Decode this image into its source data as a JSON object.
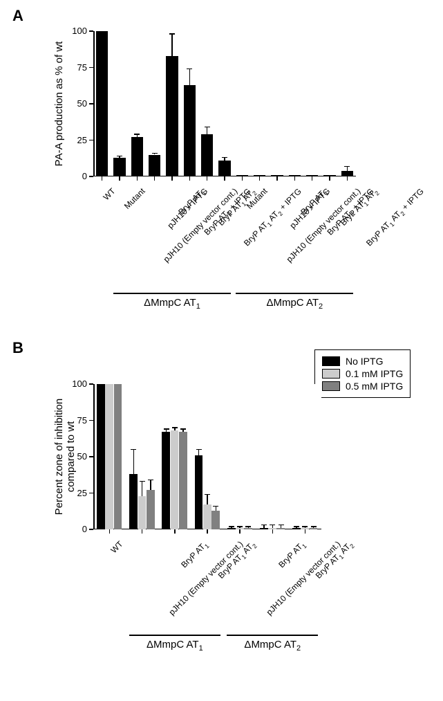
{
  "panel_labels": {
    "A": "A",
    "B": "B"
  },
  "chartA": {
    "type": "bar",
    "ylabel": "PA-A production as % of wt",
    "ylim": [
      0,
      100
    ],
    "yticks": [
      0,
      25,
      50,
      75,
      100
    ],
    "bar_color": "#000000",
    "error_color": "#000000",
    "background": "#ffffff",
    "axis_color": "#000000",
    "axis_width": 1.5,
    "label_fontsize": 15,
    "tick_fontsize": 13,
    "xtick_fontsize": 12,
    "xtick_rotation": -45,
    "categories": [
      "WT",
      "Mutant",
      "pJH10 (Empty vector cont.)",
      "pJH10 + IPTG",
      "BryP AT₁",
      "BryP AT₁ + IPTG",
      "BryP AT₁ AT₂",
      "BryP AT₁ AT₂ + IPTG",
      "Mutant",
      "pJH10 (Empty vector cont.)",
      "pJH10 + IPTG",
      "BryP AT₁",
      "BryP AT₁ + IPTG",
      "BryP AT₁ AT₂",
      "BryP AT₁ AT₂ + IPTG"
    ],
    "values": [
      100,
      13,
      27,
      15,
      83,
      63,
      29,
      11,
      1,
      1,
      1,
      1,
      1,
      1,
      4
    ],
    "err_up": [
      0,
      1,
      2,
      1,
      15,
      11,
      5,
      2,
      0,
      0,
      0,
      0,
      0,
      0,
      3
    ],
    "groups": [
      {
        "label": "ΔMmpC AT₁",
        "from_idx": 1,
        "to_idx": 7
      },
      {
        "label": "ΔMmpC AT₂",
        "from_idx": 8,
        "to_idx": 14
      }
    ]
  },
  "chartB": {
    "type": "grouped-bar",
    "ylabel": "Percent zone of inhibition\ncompared to wt",
    "ylim": [
      0,
      100
    ],
    "yticks": [
      0,
      25,
      50,
      75,
      100
    ],
    "background": "#ffffff",
    "axis_color": "#000000",
    "axis_width": 1.5,
    "label_fontsize": 15,
    "tick_fontsize": 13,
    "xtick_fontsize": 12,
    "xtick_rotation": -45,
    "legend": {
      "items": [
        {
          "label": "No IPTG",
          "color": "#000000"
        },
        {
          "label": "0.1 mM IPTG",
          "color": "#cccccc"
        },
        {
          "label": "0.5 mM IPTG",
          "color": "#808080"
        }
      ],
      "border_color": "#000000",
      "fontsize": 14
    },
    "categories": [
      "WT",
      "pJH10 (Empty vector cont.)",
      "BryP AT₁",
      "BryP AT₁ AT₂",
      "pJH10 (Empty vector cont.)",
      "BryP AT₁",
      "BryP AT₁ AT₂"
    ],
    "series": [
      {
        "name": "No IPTG",
        "color": "#000000",
        "values": [
          100,
          38,
          67,
          51,
          1,
          1,
          1
        ],
        "err_up": [
          0,
          17,
          2,
          4,
          1,
          2,
          1
        ]
      },
      {
        "name": "0.1 mM IPTG",
        "color": "#cccccc",
        "values": [
          100,
          23,
          68,
          17,
          1,
          1,
          1
        ],
        "err_up": [
          0,
          10,
          2,
          7,
          1,
          2,
          1
        ]
      },
      {
        "name": "0.5 mM IPTG",
        "color": "#808080",
        "values": [
          100,
          27,
          67,
          13,
          1,
          1,
          1
        ],
        "err_up": [
          0,
          7,
          2,
          3,
          1,
          2,
          1
        ]
      }
    ],
    "groups": [
      {
        "label": "ΔMmpC AT₁",
        "from_idx": 1,
        "to_idx": 3
      },
      {
        "label": "ΔMmpC AT₂",
        "from_idx": 4,
        "to_idx": 6
      }
    ]
  }
}
